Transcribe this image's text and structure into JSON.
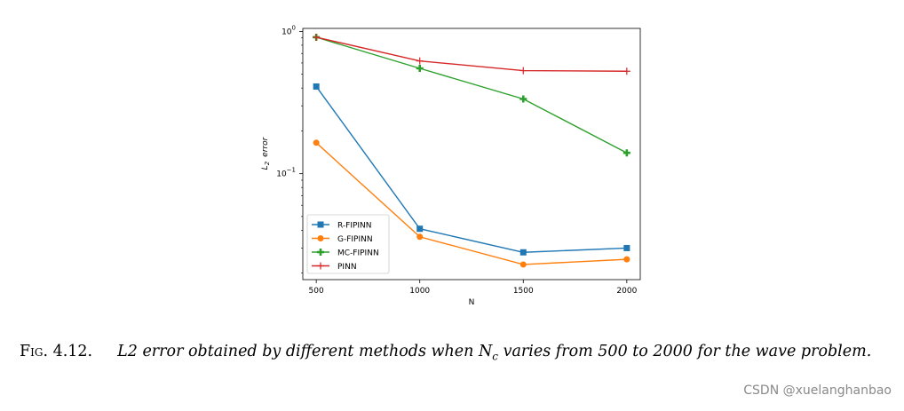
{
  "chart_data": {
    "type": "line",
    "x": [
      500,
      1000,
      1500,
      2000
    ],
    "xlabel": "N",
    "ylabel_main": "L",
    "ylabel_sub": "2",
    "ylabel_tail": "error",
    "yscale": "log",
    "ylim": [
      0.018,
      1.05
    ],
    "xlim": [
      435,
      2065
    ],
    "xticks": [
      "500",
      "1000",
      "1500",
      "2000"
    ],
    "ytick_base": "10",
    "ytick_exps": [
      "0",
      "−1"
    ],
    "legend_position": "lower left",
    "series": [
      {
        "name": "R-FIPINN",
        "color": "#1f77b4",
        "marker": "square",
        "values": [
          0.41,
          0.041,
          0.028,
          0.03
        ]
      },
      {
        "name": "G-FIPINN",
        "color": "#ff7f0e",
        "marker": "circle",
        "values": [
          0.165,
          0.036,
          0.023,
          0.025
        ]
      },
      {
        "name": "MC-FIPINN",
        "color": "#2ca02c",
        "marker": "plus",
        "values": [
          0.91,
          0.55,
          0.335,
          0.14
        ]
      },
      {
        "name": "PINN",
        "color": "#d62728",
        "marker": "thin-plus",
        "values": [
          0.91,
          0.62,
          0.53,
          0.525
        ]
      }
    ]
  },
  "caption": {
    "figure_label": "Fig. 4.12.",
    "text_before_nc": "L2 error obtained by different methods when ",
    "nc_main": "N",
    "nc_sub": "c",
    "text_after_nc": " varies from 500 to 2000 for the wave problem."
  },
  "watermark": "CSDN @xuelanghanbao"
}
